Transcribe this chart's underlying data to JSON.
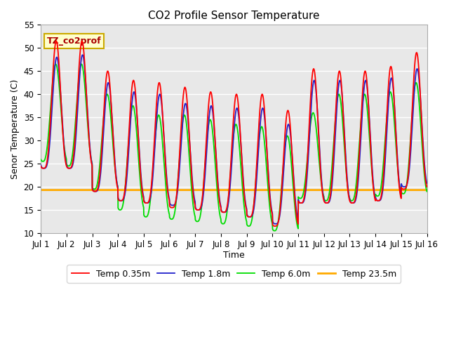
{
  "title": "CO2 Profile Sensor Temperature",
  "ylabel": "Senor Temperature (C)",
  "xlabel": "Time",
  "xlim_label": [
    "Jul 1",
    "Jul 2",
    "Jul 3",
    "Jul 4",
    "Jul 5",
    "Jul 6",
    "Jul 7",
    "Jul 8",
    "Jul 9",
    "Jul 10",
    "Jul 11",
    "Jul 12",
    "Jul 13",
    "Jul 14",
    "Jul 15",
    "Jul 16"
  ],
  "ylim": [
    10,
    55
  ],
  "yticks": [
    10,
    15,
    20,
    25,
    30,
    35,
    40,
    45,
    50,
    55
  ],
  "annotation": "TZ_co2prof",
  "line_colors": [
    "#ff0000",
    "#2222cc",
    "#00dd00",
    "#ffaa00"
  ],
  "line_labels": [
    "Temp 0.35m",
    "Temp 1.8m",
    "Temp 6.0m",
    "Temp 23.5m"
  ],
  "temp_23_5m": 19.3,
  "background_color": "#e8e8e8",
  "grid_color": "#ffffff",
  "figsize": [
    6.4,
    4.8
  ],
  "dpi": 100
}
